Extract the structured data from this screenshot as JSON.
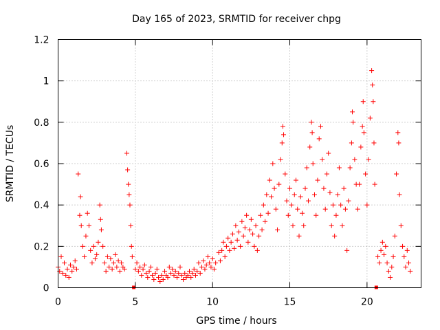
{
  "chart_data": {
    "type": "scatter",
    "title": "Day 165 of 2023, SRMTID for receiver chpg",
    "xlabel": "GPS time / hours",
    "ylabel": "SRMTID / TECUs",
    "xlim": [
      0,
      23.5
    ],
    "ylim": [
      0,
      1.2
    ],
    "x_ticks": [
      0,
      5,
      10,
      15,
      20
    ],
    "x_tick_labels": [
      "0",
      "5",
      "10",
      "15",
      "20"
    ],
    "y_ticks": [
      0,
      0.2,
      0.4,
      0.6,
      0.8,
      1.0,
      1.2
    ],
    "y_tick_labels": [
      "0",
      "0.2",
      "0.4",
      "0.6",
      "0.8",
      "1",
      "1.2"
    ],
    "grid": true,
    "marker": "+",
    "color": "#ff0000",
    "gap_markers_x": [
      4.9,
      20.6
    ],
    "series": [
      {
        "name": "SRMTID",
        "points": [
          [
            0.0,
            0.1
          ],
          [
            0.1,
            0.08
          ],
          [
            0.2,
            0.15
          ],
          [
            0.3,
            0.07
          ],
          [
            0.4,
            0.12
          ],
          [
            0.5,
            0.06
          ],
          [
            0.6,
            0.09
          ],
          [
            0.7,
            0.05
          ],
          [
            0.8,
            0.11
          ],
          [
            0.9,
            0.08
          ],
          [
            1.0,
            0.1
          ],
          [
            1.1,
            0.13
          ],
          [
            1.2,
            0.09
          ],
          [
            1.3,
            0.55
          ],
          [
            1.4,
            0.35
          ],
          [
            1.45,
            0.44
          ],
          [
            1.5,
            0.3
          ],
          [
            1.6,
            0.2
          ],
          [
            1.7,
            0.15
          ],
          [
            1.8,
            0.25
          ],
          [
            1.9,
            0.36
          ],
          [
            2.0,
            0.3
          ],
          [
            2.1,
            0.18
          ],
          [
            2.2,
            0.12
          ],
          [
            2.3,
            0.2
          ],
          [
            2.4,
            0.14
          ],
          [
            2.5,
            0.16
          ],
          [
            2.6,
            0.22
          ],
          [
            2.7,
            0.4
          ],
          [
            2.75,
            0.33
          ],
          [
            2.8,
            0.28
          ],
          [
            2.9,
            0.2
          ],
          [
            3.0,
            0.12
          ],
          [
            3.1,
            0.08
          ],
          [
            3.2,
            0.15
          ],
          [
            3.3,
            0.1
          ],
          [
            3.4,
            0.14
          ],
          [
            3.5,
            0.09
          ],
          [
            3.6,
            0.12
          ],
          [
            3.7,
            0.16
          ],
          [
            3.8,
            0.1
          ],
          [
            3.9,
            0.13
          ],
          [
            4.0,
            0.08
          ],
          [
            4.1,
            0.12
          ],
          [
            4.2,
            0.1
          ],
          [
            4.3,
            0.09
          ],
          [
            4.45,
            0.65
          ],
          [
            4.5,
            0.57
          ],
          [
            4.55,
            0.5
          ],
          [
            4.6,
            0.45
          ],
          [
            4.65,
            0.4
          ],
          [
            4.7,
            0.3
          ],
          [
            4.75,
            0.2
          ],
          [
            4.8,
            0.15
          ],
          [
            5.0,
            0.09
          ],
          [
            5.1,
            0.12
          ],
          [
            5.2,
            0.08
          ],
          [
            5.3,
            0.1
          ],
          [
            5.4,
            0.06
          ],
          [
            5.5,
            0.09
          ],
          [
            5.6,
            0.11
          ],
          [
            5.7,
            0.07
          ],
          [
            5.8,
            0.05
          ],
          [
            5.9,
            0.08
          ],
          [
            6.0,
            0.1
          ],
          [
            6.1,
            0.06
          ],
          [
            6.2,
            0.04
          ],
          [
            6.3,
            0.07
          ],
          [
            6.4,
            0.09
          ],
          [
            6.5,
            0.05
          ],
          [
            6.6,
            0.03
          ],
          [
            6.7,
            0.06
          ],
          [
            6.8,
            0.04
          ],
          [
            6.9,
            0.08
          ],
          [
            7.0,
            0.06
          ],
          [
            7.1,
            0.05
          ],
          [
            7.2,
            0.1
          ],
          [
            7.3,
            0.07
          ],
          [
            7.4,
            0.09
          ],
          [
            7.5,
            0.06
          ],
          [
            7.6,
            0.08
          ],
          [
            7.7,
            0.05
          ],
          [
            7.8,
            0.07
          ],
          [
            7.9,
            0.1
          ],
          [
            8.0,
            0.06
          ],
          [
            8.1,
            0.04
          ],
          [
            8.2,
            0.07
          ],
          [
            8.3,
            0.05
          ],
          [
            8.4,
            0.06
          ],
          [
            8.5,
            0.08
          ],
          [
            8.6,
            0.05
          ],
          [
            8.7,
            0.07
          ],
          [
            8.8,
            0.09
          ],
          [
            8.9,
            0.06
          ],
          [
            9.0,
            0.08
          ],
          [
            9.1,
            0.12
          ],
          [
            9.2,
            0.07
          ],
          [
            9.3,
            0.1
          ],
          [
            9.4,
            0.13
          ],
          [
            9.5,
            0.09
          ],
          [
            9.6,
            0.11
          ],
          [
            9.7,
            0.15
          ],
          [
            9.8,
            0.12
          ],
          [
            9.9,
            0.1
          ],
          [
            10.0,
            0.14
          ],
          [
            10.1,
            0.09
          ],
          [
            10.2,
            0.12
          ],
          [
            10.4,
            0.17
          ],
          [
            10.5,
            0.13
          ],
          [
            10.6,
            0.18
          ],
          [
            10.7,
            0.22
          ],
          [
            10.8,
            0.15
          ],
          [
            10.9,
            0.2
          ],
          [
            11.0,
            0.24
          ],
          [
            11.1,
            0.18
          ],
          [
            11.2,
            0.22
          ],
          [
            11.3,
            0.26
          ],
          [
            11.4,
            0.19
          ],
          [
            11.5,
            0.3
          ],
          [
            11.6,
            0.23
          ],
          [
            11.7,
            0.27
          ],
          [
            11.8,
            0.2
          ],
          [
            11.9,
            0.32
          ],
          [
            12.0,
            0.25
          ],
          [
            12.1,
            0.29
          ],
          [
            12.2,
            0.35
          ],
          [
            12.3,
            0.22
          ],
          [
            12.4,
            0.28
          ],
          [
            12.5,
            0.33
          ],
          [
            12.6,
            0.26
          ],
          [
            12.7,
            0.2
          ],
          [
            12.8,
            0.3
          ],
          [
            12.9,
            0.18
          ],
          [
            13.0,
            0.25
          ],
          [
            13.1,
            0.35
          ],
          [
            13.2,
            0.28
          ],
          [
            13.3,
            0.4
          ],
          [
            13.4,
            0.32
          ],
          [
            13.5,
            0.45
          ],
          [
            13.6,
            0.36
          ],
          [
            13.7,
            0.52
          ],
          [
            13.8,
            0.44
          ],
          [
            13.9,
            0.6
          ],
          [
            14.0,
            0.48
          ],
          [
            14.1,
            0.38
          ],
          [
            14.2,
            0.28
          ],
          [
            14.3,
            0.5
          ],
          [
            14.4,
            0.62
          ],
          [
            14.5,
            0.7
          ],
          [
            14.55,
            0.78
          ],
          [
            14.6,
            0.74
          ],
          [
            14.7,
            0.55
          ],
          [
            14.8,
            0.42
          ],
          [
            14.9,
            0.35
          ],
          [
            15.0,
            0.48
          ],
          [
            15.1,
            0.4
          ],
          [
            15.2,
            0.3
          ],
          [
            15.3,
            0.45
          ],
          [
            15.4,
            0.52
          ],
          [
            15.5,
            0.38
          ],
          [
            15.6,
            0.25
          ],
          [
            15.7,
            0.44
          ],
          [
            15.8,
            0.36
          ],
          [
            15.9,
            0.3
          ],
          [
            16.0,
            0.48
          ],
          [
            16.1,
            0.58
          ],
          [
            16.2,
            0.42
          ],
          [
            16.3,
            0.68
          ],
          [
            16.4,
            0.8
          ],
          [
            16.45,
            0.75
          ],
          [
            16.5,
            0.6
          ],
          [
            16.6,
            0.45
          ],
          [
            16.7,
            0.35
          ],
          [
            16.8,
            0.52
          ],
          [
            16.9,
            0.72
          ],
          [
            17.0,
            0.78
          ],
          [
            17.1,
            0.62
          ],
          [
            17.2,
            0.48
          ],
          [
            17.3,
            0.38
          ],
          [
            17.4,
            0.55
          ],
          [
            17.5,
            0.65
          ],
          [
            17.6,
            0.46
          ],
          [
            17.7,
            0.3
          ],
          [
            17.8,
            0.4
          ],
          [
            17.9,
            0.25
          ],
          [
            18.0,
            0.35
          ],
          [
            18.1,
            0.45
          ],
          [
            18.2,
            0.58
          ],
          [
            18.3,
            0.4
          ],
          [
            18.4,
            0.3
          ],
          [
            18.5,
            0.48
          ],
          [
            18.6,
            0.38
          ],
          [
            18.7,
            0.18
          ],
          [
            18.8,
            0.42
          ],
          [
            18.9,
            0.58
          ],
          [
            19.0,
            0.7
          ],
          [
            19.05,
            0.85
          ],
          [
            19.1,
            0.8
          ],
          [
            19.2,
            0.62
          ],
          [
            19.3,
            0.5
          ],
          [
            19.4,
            0.38
          ],
          [
            19.5,
            0.5
          ],
          [
            19.6,
            0.68
          ],
          [
            19.7,
            0.78
          ],
          [
            19.75,
            0.9
          ],
          [
            19.8,
            0.75
          ],
          [
            19.9,
            0.55
          ],
          [
            20.0,
            0.4
          ],
          [
            20.1,
            0.62
          ],
          [
            20.2,
            0.82
          ],
          [
            20.3,
            1.05
          ],
          [
            20.35,
            0.98
          ],
          [
            20.4,
            0.9
          ],
          [
            20.45,
            0.7
          ],
          [
            20.5,
            0.5
          ],
          [
            20.7,
            0.15
          ],
          [
            20.8,
            0.12
          ],
          [
            20.9,
            0.18
          ],
          [
            21.0,
            0.22
          ],
          [
            21.1,
            0.16
          ],
          [
            21.2,
            0.2
          ],
          [
            21.3,
            0.12
          ],
          [
            21.4,
            0.08
          ],
          [
            21.5,
            0.05
          ],
          [
            21.6,
            0.1
          ],
          [
            21.7,
            0.15
          ],
          [
            21.8,
            0.25
          ],
          [
            21.9,
            0.55
          ],
          [
            22.0,
            0.75
          ],
          [
            22.05,
            0.7
          ],
          [
            22.1,
            0.45
          ],
          [
            22.2,
            0.3
          ],
          [
            22.3,
            0.2
          ],
          [
            22.4,
            0.15
          ],
          [
            22.5,
            0.1
          ],
          [
            22.6,
            0.18
          ],
          [
            22.7,
            0.12
          ],
          [
            22.8,
            0.08
          ]
        ]
      }
    ]
  }
}
